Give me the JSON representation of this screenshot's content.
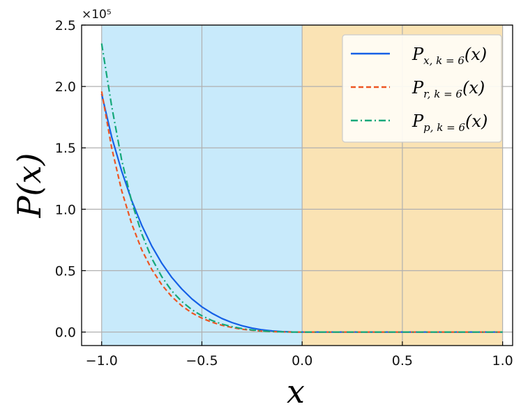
{
  "chart_data": {
    "type": "line",
    "xlabel": "x",
    "ylabel": "P(x)",
    "y_scale_label": "×10⁵",
    "xlim": [
      -1.1,
      1.05
    ],
    "ylim": [
      -11000,
      250000
    ],
    "x_ticks": [
      -1.0,
      -0.5,
      0.0,
      0.5,
      1.0
    ],
    "x_tick_labels": [
      "−1.0",
      "−0.5",
      "0.0",
      "0.5",
      "1.0"
    ],
    "y_ticks": [
      0,
      50000,
      100000,
      150000,
      200000,
      250000
    ],
    "y_tick_labels": [
      "0.0",
      "0.5",
      "1.0",
      "1.5",
      "2.0",
      "2.5"
    ],
    "grid": true,
    "legend_position": "top-right",
    "shaded_regions": [
      {
        "x_range": [
          -1.0,
          0.0
        ],
        "color": "#c8eafb"
      },
      {
        "x_range": [
          0.0,
          1.0
        ],
        "color": "#fae3b4"
      }
    ],
    "x": [
      -1.0,
      -0.95,
      -0.9,
      -0.85,
      -0.8,
      -0.75,
      -0.7,
      -0.65,
      -0.6,
      -0.55,
      -0.5,
      -0.45,
      -0.4,
      -0.35,
      -0.3,
      -0.25,
      -0.2,
      -0.15,
      -0.1,
      -0.05,
      0.0,
      0.25,
      0.5,
      0.75,
      1.0
    ],
    "series": [
      {
        "name": "P_{x,k=6}(x)",
        "legend_main": "P",
        "legend_sub": "x, k = 6",
        "legend_tail": "(x)",
        "color": "#1560e6",
        "dash": "solid",
        "values": [
          194000,
          159000,
          131000,
          107000,
          87000,
          70000,
          56000,
          44500,
          35000,
          27000,
          20500,
          15300,
          11000,
          7700,
          5100,
          3200,
          1800,
          900,
          350,
          80,
          0,
          0,
          0,
          0,
          0
        ]
      },
      {
        "name": "P_{r,k=6}(x)",
        "legend_main": "P",
        "legend_sub": "r, k = 6",
        "legend_tail": "(x)",
        "color": "#ee5522",
        "dash": "dashed",
        "values": [
          196000,
          150000,
          115000,
          88000,
          67000,
          51000,
          38500,
          28800,
          21300,
          15600,
          11300,
          8000,
          5500,
          3700,
          2300,
          1400,
          750,
          350,
          120,
          20,
          0,
          0,
          0,
          0,
          0
        ]
      },
      {
        "name": "P_{p,k=6}(x)",
        "legend_main": "P",
        "legend_sub": "p, k = 6",
        "legend_tail": "(x)",
        "color": "#14a87a",
        "dash": "dashdot",
        "values": [
          235000,
          184000,
          140000,
          106000,
          80000,
          60000,
          45000,
          33500,
          24800,
          18200,
          13200,
          9400,
          6500,
          4400,
          2800,
          1700,
          900,
          420,
          150,
          30,
          0,
          0,
          0,
          0,
          0
        ]
      }
    ]
  }
}
